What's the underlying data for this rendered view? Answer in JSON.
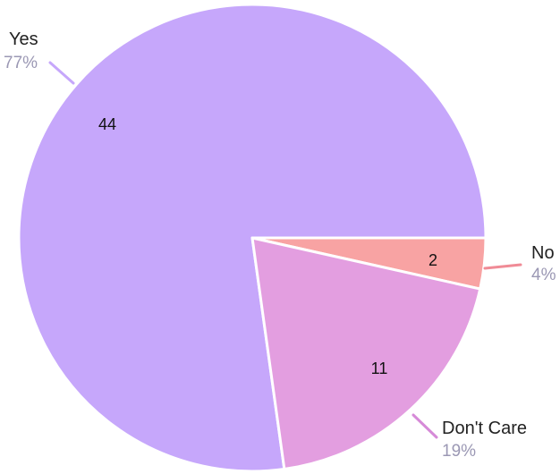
{
  "chart_data": {
    "type": "pie",
    "slices": [
      {
        "label": "Yes",
        "value": 44,
        "percent": "77%",
        "color": "#c6a7fb",
        "leader_color": "#c6a7fb"
      },
      {
        "label": "No",
        "value": 2,
        "percent": "4%",
        "color": "#f8a3a3",
        "leader_color": "#f08b96"
      },
      {
        "label": "Don't Care",
        "value": 11,
        "percent": "19%",
        "color": "#e39ee0",
        "leader_color": "#d68ad8"
      }
    ],
    "percent_text_color": "#9b98b4",
    "start_angle_deg": 0,
    "direction": "counterclockwise-for-yes"
  }
}
